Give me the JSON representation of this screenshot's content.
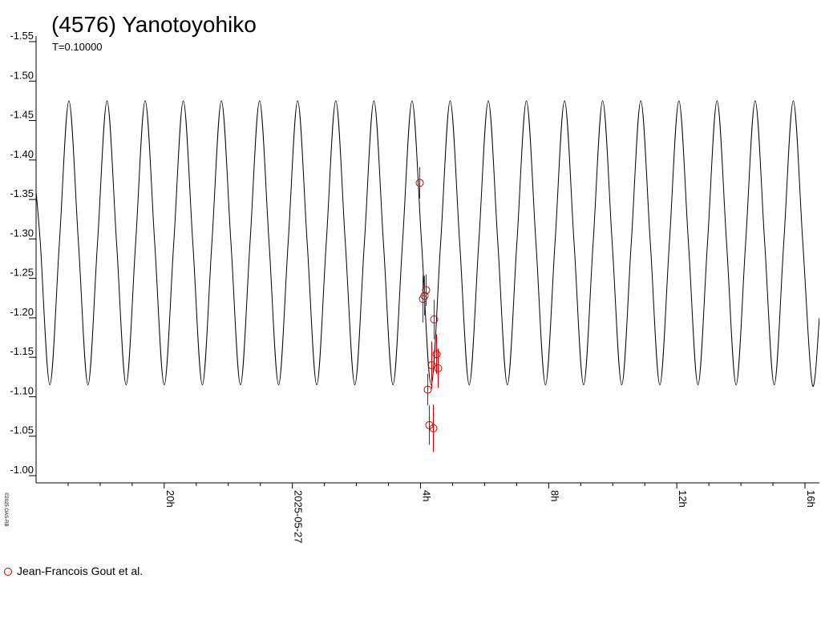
{
  "chart_data": {
    "type": "lightcurve",
    "title": "(4576) Yanotoyohiko",
    "subtitle": "T=0.10000",
    "credit": "©2025 OAS-RB",
    "xlim": [
      16.0,
      40.45
    ],
    "xticks": [
      {
        "value": 20,
        "label": "20h"
      },
      {
        "value": 24,
        "label": "2025-05-27"
      },
      {
        "value": 28,
        "label": "4h"
      },
      {
        "value": 32,
        "label": "8h"
      },
      {
        "value": 36,
        "label": "12h"
      },
      {
        "value": 40,
        "label": "16h"
      }
    ],
    "xminorticks": [
      17,
      18,
      19,
      21,
      22,
      23,
      25,
      26,
      27,
      29,
      30,
      31,
      33,
      34,
      35,
      37,
      38,
      39
    ],
    "ylim": [
      -1.55,
      -1.0
    ],
    "y_inverted": true,
    "yticks": [
      -1.55,
      {
        "value": -1.5,
        "label": "-1.50"
      },
      -1.45,
      {
        "value": -1.4,
        "label": "-1.40"
      },
      -1.35,
      {
        "value": -1.3,
        "label": "-1.30"
      },
      -1.25,
      {
        "value": -1.2,
        "label": "-1.20"
      },
      -1.15,
      {
        "value": -1.1,
        "label": "-1.10"
      },
      -1.05,
      {
        "value": -1.0,
        "label": "-1.00"
      }
    ],
    "series": [
      {
        "type": "line",
        "color": "#000000",
        "x": [
          16.0,
          16.1325,
          16.43,
          16.7275,
          17.025,
          17.3225,
          17.62,
          17.9175,
          18.215,
          18.5125,
          18.81,
          19.1075,
          19.405,
          19.7025,
          20.0,
          20.2975,
          20.595,
          20.8925,
          21.19,
          21.4875,
          21.785,
          22.0825,
          22.38,
          22.6775,
          22.975,
          23.2725,
          23.57,
          23.8675,
          24.165,
          24.4625,
          24.76,
          25.0575,
          25.355,
          25.6525,
          25.95,
          26.2475,
          26.545,
          26.8425,
          27.14,
          27.4375,
          27.735,
          28.0325,
          28.33,
          28.6275,
          28.925,
          29.2225,
          29.52,
          29.8175,
          30.115,
          30.4125,
          30.71,
          31.0075,
          31.305,
          31.6025,
          31.9,
          32.1975,
          32.495,
          32.7925,
          33.09,
          33.3875,
          33.685,
          33.9825,
          34.28,
          34.5775,
          34.875,
          35.1725,
          35.47,
          35.7675,
          36.065,
          36.3625,
          36.66,
          36.9575,
          37.255,
          37.5525,
          37.85,
          38.1475,
          38.445,
          38.7425,
          39.04,
          39.3375,
          39.635,
          39.9325,
          40.23,
          40.45
        ],
        "values": [
          -1.36,
          -1.295,
          -1.115,
          -1.295,
          -1.475,
          -1.295,
          -1.115,
          -1.295,
          -1.475,
          -1.295,
          -1.115,
          -1.295,
          -1.475,
          -1.295,
          -1.115,
          -1.295,
          -1.475,
          -1.295,
          -1.115,
          -1.295,
          -1.475,
          -1.295,
          -1.115,
          -1.295,
          -1.475,
          -1.295,
          -1.115,
          -1.295,
          -1.475,
          -1.295,
          -1.115,
          -1.295,
          -1.475,
          -1.295,
          -1.115,
          -1.295,
          -1.475,
          -1.295,
          -1.115,
          -1.295,
          -1.475,
          -1.295,
          -1.115,
          -1.295,
          -1.475,
          -1.295,
          -1.115,
          -1.295,
          -1.475,
          -1.295,
          -1.115,
          -1.295,
          -1.475,
          -1.295,
          -1.115,
          -1.295,
          -1.475,
          -1.295,
          -1.115,
          -1.295,
          -1.475,
          -1.295,
          -1.115,
          -1.295,
          -1.475,
          -1.295,
          -1.115,
          -1.295,
          -1.475,
          -1.295,
          -1.115,
          -1.295,
          -1.475,
          -1.295,
          -1.115,
          -1.295,
          -1.475,
          -1.295,
          -1.115,
          -1.295,
          -1.475,
          -1.295,
          -1.115,
          -1.2
        ]
      },
      {
        "type": "scatter",
        "name": "Jean-Francois Gout et al.",
        "color": "#cc0000",
        "x": [
          27.975,
          28.075,
          28.125,
          28.175,
          28.425,
          28.5,
          28.35,
          28.55,
          28.225,
          28.275,
          28.4
        ],
        "values": [
          -1.371,
          -1.224,
          -1.228,
          -1.235,
          -1.198,
          -1.154,
          -1.14,
          -1.136,
          -1.109,
          -1.064,
          -1.06
        ],
        "errors": [
          0.02,
          0.03,
          0.025,
          0.02,
          0.025,
          0.025,
          0.03,
          0.025,
          0.02,
          0.025,
          0.03
        ]
      }
    ]
  }
}
